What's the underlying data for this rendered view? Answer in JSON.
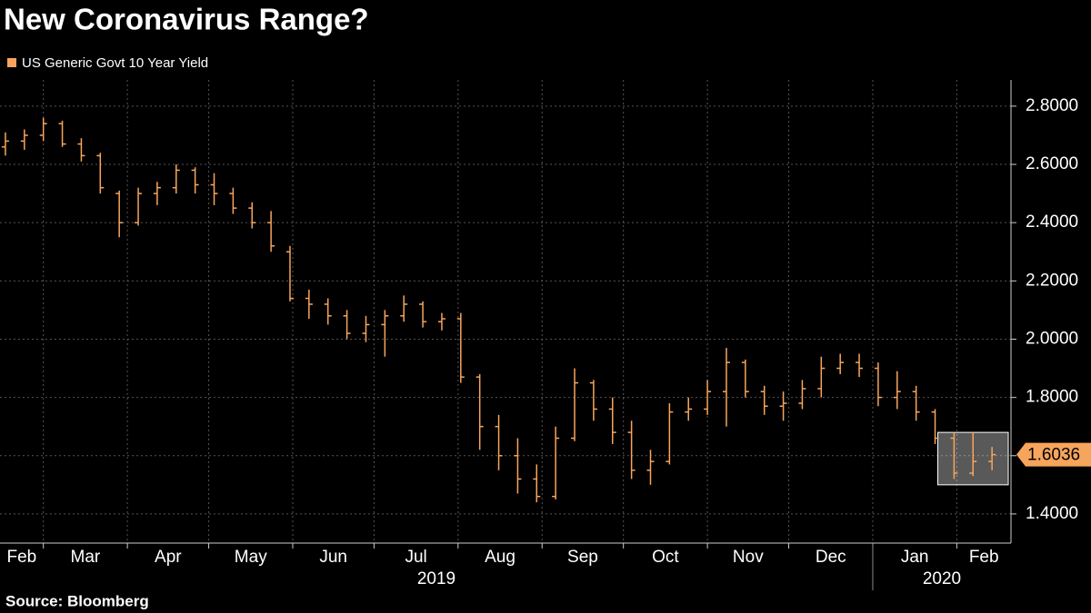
{
  "chart_data": {
    "type": "ohlc",
    "title": "New Coronavirus Range?",
    "source": "Source: Bloomberg",
    "grid": true,
    "x": [
      14,
      21,
      28,
      35,
      42,
      49,
      56,
      63,
      70,
      77,
      84,
      91,
      98,
      105,
      112,
      119,
      126,
      133,
      140,
      147,
      154,
      161,
      168,
      175,
      182,
      189,
      196,
      203,
      210,
      217,
      224,
      231,
      238,
      245,
      252,
      259,
      266,
      273,
      280,
      287,
      294,
      301,
      308,
      315,
      322,
      329,
      336,
      343,
      350,
      357,
      364,
      371,
      378
    ],
    "series": [
      {
        "name": "US Generic Govt 10 Year Yield",
        "color": "#f7a55c",
        "open": [
          2.66,
          2.68,
          2.7,
          2.74,
          2.67,
          2.63,
          2.5,
          2.4,
          2.5,
          2.52,
          2.58,
          2.53,
          2.5,
          2.45,
          2.4,
          2.3,
          2.14,
          2.12,
          2.08,
          2.02,
          2.05,
          2.08,
          2.12,
          2.06,
          2.07,
          1.87,
          1.7,
          1.6,
          1.52,
          1.46,
          1.66,
          1.85,
          1.76,
          1.68,
          1.55,
          1.58,
          1.75,
          1.76,
          1.82,
          1.92,
          1.82,
          1.77,
          1.78,
          1.83,
          1.9,
          1.92,
          1.9,
          1.8,
          1.82,
          1.75,
          1.66,
          1.54,
          1.58
        ],
        "high": [
          2.71,
          2.72,
          2.76,
          2.75,
          2.69,
          2.64,
          2.51,
          2.52,
          2.54,
          2.6,
          2.59,
          2.57,
          2.52,
          2.47,
          2.44,
          2.32,
          2.17,
          2.14,
          2.1,
          2.08,
          2.1,
          2.15,
          2.13,
          2.09,
          2.09,
          1.88,
          1.74,
          1.66,
          1.57,
          1.7,
          1.9,
          1.86,
          1.8,
          1.72,
          1.62,
          1.78,
          1.8,
          1.86,
          1.97,
          1.93,
          1.84,
          1.82,
          1.86,
          1.94,
          1.95,
          1.95,
          1.92,
          1.89,
          1.84,
          1.76,
          1.68,
          1.68,
          1.63
        ],
        "low": [
          2.63,
          2.65,
          2.68,
          2.66,
          2.61,
          2.5,
          2.35,
          2.39,
          2.46,
          2.5,
          2.5,
          2.46,
          2.43,
          2.38,
          2.3,
          2.13,
          2.07,
          2.05,
          2.0,
          1.99,
          1.94,
          2.06,
          2.04,
          2.03,
          1.85,
          1.62,
          1.55,
          1.47,
          1.44,
          1.45,
          1.65,
          1.72,
          1.64,
          1.52,
          1.5,
          1.57,
          1.72,
          1.74,
          1.7,
          1.8,
          1.74,
          1.72,
          1.76,
          1.8,
          1.88,
          1.87,
          1.77,
          1.76,
          1.72,
          1.64,
          1.52,
          1.53,
          1.55
        ],
        "close": [
          2.68,
          2.7,
          2.74,
          2.67,
          2.63,
          2.52,
          2.4,
          2.5,
          2.52,
          2.58,
          2.53,
          2.5,
          2.45,
          2.4,
          2.32,
          2.14,
          2.12,
          2.08,
          2.02,
          2.05,
          2.08,
          2.12,
          2.06,
          2.07,
          1.87,
          1.7,
          1.6,
          1.52,
          1.46,
          1.66,
          1.85,
          1.76,
          1.68,
          1.55,
          1.58,
          1.75,
          1.76,
          1.82,
          1.92,
          1.82,
          1.77,
          1.78,
          1.83,
          1.9,
          1.92,
          1.9,
          1.8,
          1.82,
          1.75,
          1.66,
          1.54,
          1.58,
          1.6036
        ]
      }
    ],
    "xlim": [
      12,
      385
    ],
    "ylim": [
      1.3,
      2.89
    ],
    "yticks": [
      {
        "value": 1.4,
        "label": "1.4000"
      },
      {
        "value": 1.6,
        "label": "1.6000"
      },
      {
        "value": 1.8,
        "label": "1.8000"
      },
      {
        "value": 2.0,
        "label": "2.0000"
      },
      {
        "value": 2.2,
        "label": "2.2000"
      },
      {
        "value": 2.4,
        "label": "2.4000"
      },
      {
        "value": 2.6,
        "label": "2.6000"
      },
      {
        "value": 2.8,
        "label": "2.8000"
      }
    ],
    "xticks": [
      {
        "value": 0,
        "label": "Feb"
      },
      {
        "value": 28,
        "label": "Mar"
      },
      {
        "value": 59,
        "label": "Apr"
      },
      {
        "value": 89,
        "label": "May"
      },
      {
        "value": 120,
        "label": "Jun"
      },
      {
        "value": 150,
        "label": "Jul"
      },
      {
        "value": 181,
        "label": "Aug"
      },
      {
        "value": 212,
        "label": "Sep"
      },
      {
        "value": 242,
        "label": "Oct"
      },
      {
        "value": 273,
        "label": "Nov"
      },
      {
        "value": 303,
        "label": "Dec"
      },
      {
        "value": 334,
        "label": "Jan"
      },
      {
        "value": 365,
        "label": "Feb"
      }
    ],
    "year_ticks": [
      {
        "value": 0,
        "label": "2019"
      },
      {
        "value": 334,
        "label": "2020"
      }
    ],
    "highlight": {
      "xlim": [
        358,
        384
      ],
      "ylim": [
        1.5,
        1.68
      ]
    }
  }
}
